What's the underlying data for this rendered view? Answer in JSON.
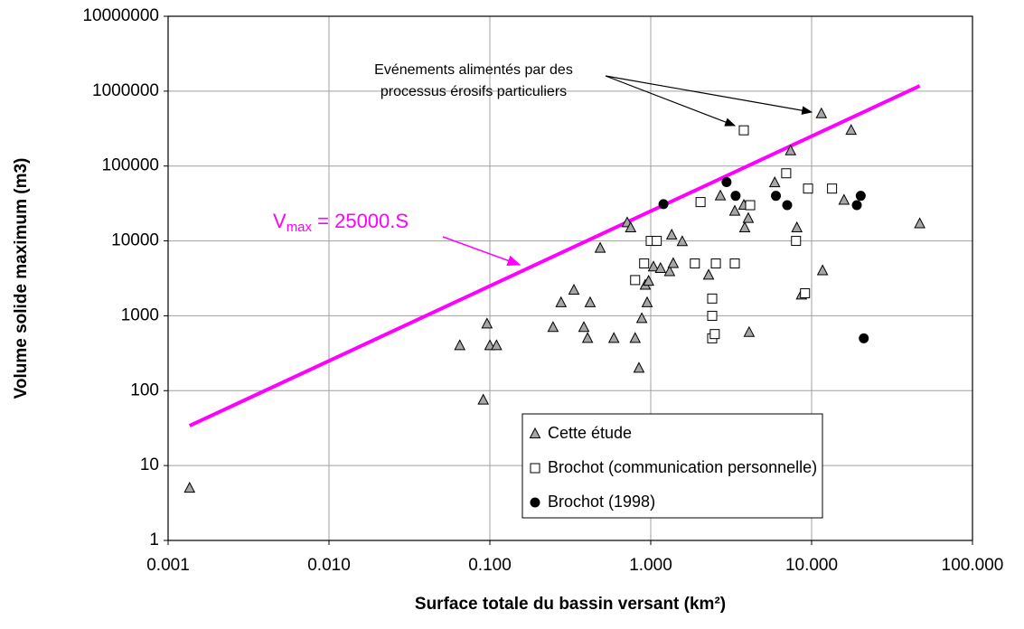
{
  "chart_data": {
    "type": "scatter",
    "xlabel": "Surface totale du bassin versant (km²)",
    "ylabel": "Volume solide maximum (m3)",
    "xscale": "log",
    "yscale": "log",
    "grid": true,
    "legend": "lower right",
    "xlim": [
      0.001,
      100
    ],
    "ylim": [
      1,
      10000000
    ],
    "xticks": [
      0.001,
      {
        "value": 0.01,
        "label": "0.010"
      },
      {
        "value": 0.1,
        "label": "0.100"
      },
      {
        "value": 1,
        "label": "1.000"
      },
      {
        "value": 10,
        "label": "10.000"
      },
      {
        "value": 100,
        "label": "100.000"
      }
    ],
    "yticks": [
      1,
      10,
      100,
      1000,
      10000,
      100000,
      1000000,
      10000000
    ],
    "series": [
      {
        "name": "Cette étude",
        "marker": "triangle",
        "color": "#a6a6a6",
        "x": [
          0.00136,
          0.065,
          0.096,
          0.091,
          0.1,
          0.11,
          0.247,
          0.277,
          0.333,
          0.384,
          0.405,
          0.42,
          0.485,
          0.59,
          0.714,
          0.75,
          0.8,
          0.845,
          0.88,
          0.925,
          0.95,
          0.97,
          1.04,
          1.15,
          1.31,
          1.35,
          1.38,
          1.57,
          2.29,
          2.71,
          3.33,
          3.79,
          3.84,
          4.04,
          4.09,
          5.9,
          7.4,
          8.1,
          8.65,
          11.7,
          11.5,
          17.6,
          15.9,
          47
        ],
        "values": [
          5,
          400,
          780,
          75,
          400,
          400,
          700,
          1500,
          2200,
          700,
          500,
          1500,
          8000,
          500,
          17500,
          15000,
          500,
          200,
          920,
          2570,
          1500,
          2900,
          4500,
          4300,
          3900,
          12000,
          5000,
          9800,
          3500,
          40000,
          25000,
          30000,
          15000,
          20000,
          600,
          60000,
          160000,
          15000,
          1900,
          4000,
          500000,
          300000,
          35000,
          17000
        ]
      },
      {
        "name": "Brochot (communication personnelle)",
        "marker": "square",
        "color": "#ffffff",
        "x": [
          3.79,
          0.91,
          1.0,
          1.09,
          0.8,
          1.88,
          2.04,
          2.41,
          2.54,
          2.41,
          2.41,
          2.5,
          3.33,
          4.15,
          6.95,
          9.5,
          13.4,
          8.0,
          9.1
        ],
        "values": [
          300000,
          5000,
          10000,
          10000,
          3000,
          5000,
          33000,
          1000,
          5000,
          1700,
          500,
          570,
          5000,
          30000,
          80000,
          50000,
          50000,
          10000,
          2000
        ]
      },
      {
        "name": "Brochot (1998)",
        "marker": "circle",
        "color": "#000000",
        "x": [
          1.2,
          2.96,
          3.37,
          6.0,
          7.05,
          19.1,
          20.2,
          21.1
        ],
        "values": [
          31000,
          61000,
          40000,
          40000,
          30000,
          30000,
          40000,
          500
        ]
      }
    ],
    "fit_line": {
      "color": "#ff00ff",
      "x": [
        0.00136,
        47
      ],
      "values": [
        34,
        1175000
      ]
    },
    "annotations": {
      "equation": {
        "v": "V",
        "sub": "max",
        "rest": " = 25000.S"
      },
      "note": [
        "Evénements alimentés par des",
        "processus érosifs particuliers"
      ]
    }
  }
}
